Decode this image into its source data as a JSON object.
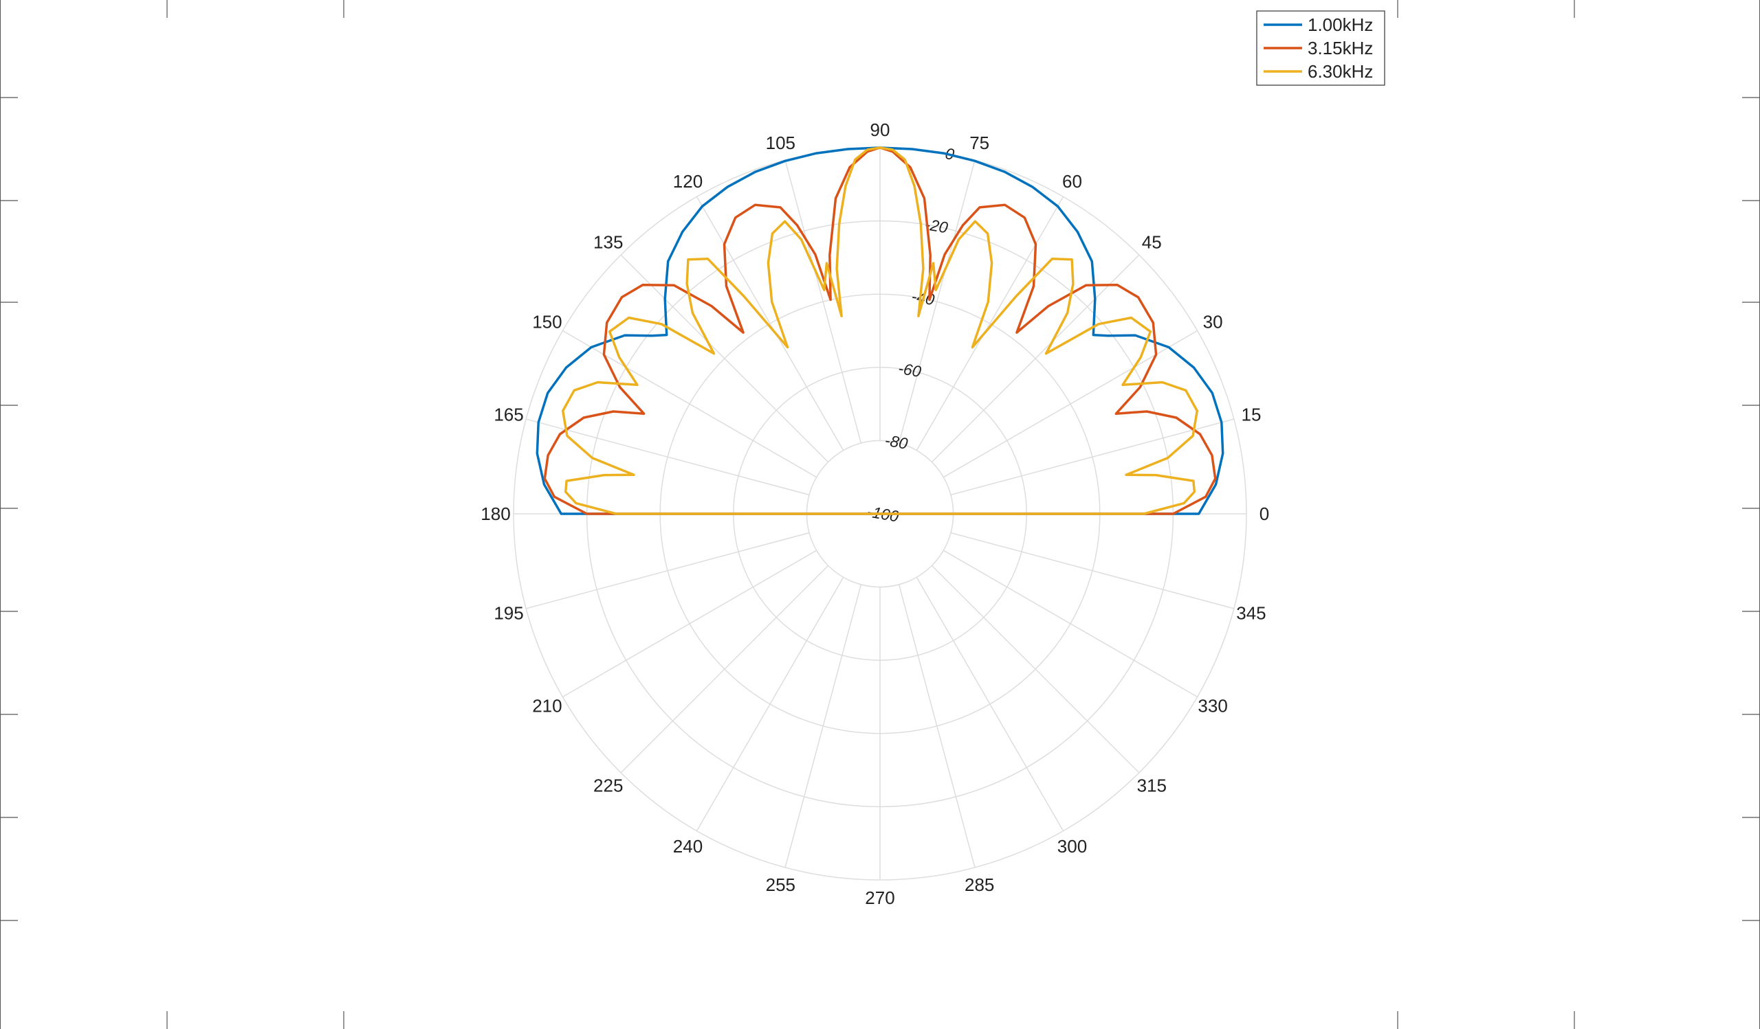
{
  "chart_data": {
    "type": "line",
    "coordinate_system": "polar",
    "theta_unit": "degrees",
    "theta_ticks": [
      0,
      15,
      30,
      45,
      60,
      75,
      90,
      105,
      120,
      135,
      150,
      165,
      180,
      195,
      210,
      225,
      240,
      255,
      270,
      285,
      300,
      315,
      330,
      345
    ],
    "theta_tick_labels": [
      "0",
      "15",
      "30",
      "45",
      "60",
      "75",
      "90",
      "105",
      "120",
      "135",
      "150",
      "165",
      "180",
      "195",
      "210",
      "225",
      "240",
      "255",
      "270",
      "285",
      "300",
      "315",
      "330",
      "345"
    ],
    "r_unit": "dB",
    "rlim": [
      -100,
      0
    ],
    "r_ticks": [
      0,
      -20,
      -40,
      -60,
      -80,
      -100
    ],
    "r_tick_labels": [
      "0",
      "-20",
      "-40",
      "-60",
      "-80",
      "-100"
    ],
    "grid": true,
    "legend": {
      "position": "top-right"
    },
    "colors": {
      "grid": "#dddddd",
      "axis_text": "#222222",
      "frame": "#555555"
    },
    "series": [
      {
        "name": "1.00kHz",
        "color": "#0072BD",
        "points": [
          [
            0,
            -13
          ],
          [
            5,
            -8
          ],
          [
            10,
            -5
          ],
          [
            15,
            -3.5
          ],
          [
            20,
            -3.5
          ],
          [
            25,
            -5.5
          ],
          [
            30,
            -9
          ],
          [
            35,
            -15
          ],
          [
            38,
            -21
          ],
          [
            40,
            -24
          ],
          [
            45,
            -17
          ],
          [
            50,
            -10
          ],
          [
            55,
            -6
          ],
          [
            60,
            -3
          ],
          [
            65,
            -1.5
          ],
          [
            70,
            -0.6
          ],
          [
            75,
            -0.2
          ],
          [
            80,
            0
          ],
          [
            85,
            0
          ],
          [
            90,
            0
          ],
          [
            95,
            0
          ],
          [
            100,
            0
          ],
          [
            105,
            -0.2
          ],
          [
            110,
            -0.6
          ],
          [
            115,
            -1.5
          ],
          [
            120,
            -3
          ],
          [
            125,
            -6
          ],
          [
            130,
            -10
          ],
          [
            135,
            -17
          ],
          [
            140,
            -24
          ],
          [
            142,
            -21
          ],
          [
            145,
            -15
          ],
          [
            150,
            -9
          ],
          [
            155,
            -5.5
          ],
          [
            160,
            -3.5
          ],
          [
            165,
            -3.5
          ],
          [
            170,
            -5
          ],
          [
            175,
            -8
          ],
          [
            180,
            -13
          ]
        ]
      },
      {
        "name": "3.15kHz",
        "color": "#D95319",
        "points": [
          [
            0,
            -20
          ],
          [
            3,
            -11
          ],
          [
            6,
            -8
          ],
          [
            10,
            -8
          ],
          [
            14,
            -10
          ],
          [
            18,
            -15
          ],
          [
            21,
            -22
          ],
          [
            23,
            -30
          ],
          [
            26,
            -21
          ],
          [
            30,
            -13
          ],
          [
            35,
            -9
          ],
          [
            40,
            -8
          ],
          [
            44,
            -10
          ],
          [
            48,
            -16
          ],
          [
            51,
            -27
          ],
          [
            53,
            -38
          ],
          [
            56,
            -25
          ],
          [
            60,
            -15
          ],
          [
            64,
            -10
          ],
          [
            68,
            -9
          ],
          [
            72,
            -12
          ],
          [
            74,
            -18
          ],
          [
            76,
            -27
          ],
          [
            77,
            -40
          ],
          [
            79,
            -28
          ],
          [
            82,
            -13
          ],
          [
            85,
            -5
          ],
          [
            88,
            -1
          ],
          [
            90,
            0
          ],
          [
            92,
            -1
          ],
          [
            95,
            -5
          ],
          [
            98,
            -13
          ],
          [
            101,
            -28
          ],
          [
            103,
            -40
          ],
          [
            104,
            -27
          ],
          [
            106,
            -18
          ],
          [
            108,
            -12
          ],
          [
            112,
            -9
          ],
          [
            116,
            -10
          ],
          [
            120,
            -15
          ],
          [
            124,
            -25
          ],
          [
            127,
            -38
          ],
          [
            129,
            -27
          ],
          [
            132,
            -16
          ],
          [
            136,
            -10
          ],
          [
            140,
            -8
          ],
          [
            145,
            -9
          ],
          [
            150,
            -13
          ],
          [
            154,
            -21
          ],
          [
            157,
            -30
          ],
          [
            159,
            -22
          ],
          [
            162,
            -15
          ],
          [
            166,
            -10
          ],
          [
            170,
            -8
          ],
          [
            174,
            -8
          ],
          [
            177,
            -11
          ],
          [
            180,
            -20
          ]
        ]
      },
      {
        "name": "6.30kHz",
        "color": "#EDB120",
        "points": [
          [
            0,
            -28
          ],
          [
            2,
            -17
          ],
          [
            4,
            -14
          ],
          [
            6,
            -14
          ],
          [
            8,
            -24
          ],
          [
            9,
            -32
          ],
          [
            11,
            -20
          ],
          [
            14,
            -12
          ],
          [
            18,
            -9
          ],
          [
            22,
            -10
          ],
          [
            25,
            -15
          ],
          [
            28,
            -25
          ],
          [
            31,
            -17
          ],
          [
            34,
            -11
          ],
          [
            38,
            -13
          ],
          [
            41,
            -21
          ],
          [
            44,
            -37
          ],
          [
            47,
            -25
          ],
          [
            50,
            -18
          ],
          [
            53,
            -13
          ],
          [
            56,
            -16
          ],
          [
            58,
            -30
          ],
          [
            61,
            -48
          ],
          [
            63,
            -35
          ],
          [
            66,
            -25
          ],
          [
            69,
            -18
          ],
          [
            72,
            -16
          ],
          [
            74,
            -22
          ],
          [
            76,
            -37
          ],
          [
            78,
            -30
          ],
          [
            79,
            -45
          ],
          [
            80,
            -32
          ],
          [
            82,
            -20
          ],
          [
            84,
            -10
          ],
          [
            86,
            -3
          ],
          [
            88,
            -0.5
          ],
          [
            90,
            0
          ],
          [
            92,
            -0.5
          ],
          [
            94,
            -3
          ],
          [
            96,
            -10
          ],
          [
            98,
            -20
          ],
          [
            100,
            -32
          ],
          [
            101,
            -45
          ],
          [
            102,
            -30
          ],
          [
            104,
            -37
          ],
          [
            106,
            -22
          ],
          [
            108,
            -16
          ],
          [
            111,
            -18
          ],
          [
            114,
            -25
          ],
          [
            117,
            -35
          ],
          [
            119,
            -48
          ],
          [
            122,
            -30
          ],
          [
            124,
            -16
          ],
          [
            127,
            -13
          ],
          [
            130,
            -18
          ],
          [
            133,
            -25
          ],
          [
            136,
            -37
          ],
          [
            139,
            -21
          ],
          [
            142,
            -13
          ],
          [
            146,
            -11
          ],
          [
            149,
            -17
          ],
          [
            152,
            -25
          ],
          [
            155,
            -15
          ],
          [
            158,
            -10
          ],
          [
            162,
            -9
          ],
          [
            166,
            -12
          ],
          [
            169,
            -20
          ],
          [
            171,
            -32
          ],
          [
            172,
            -24
          ],
          [
            174,
            -14
          ],
          [
            176,
            -14
          ],
          [
            178,
            -17
          ],
          [
            180,
            -28
          ]
        ]
      }
    ]
  }
}
